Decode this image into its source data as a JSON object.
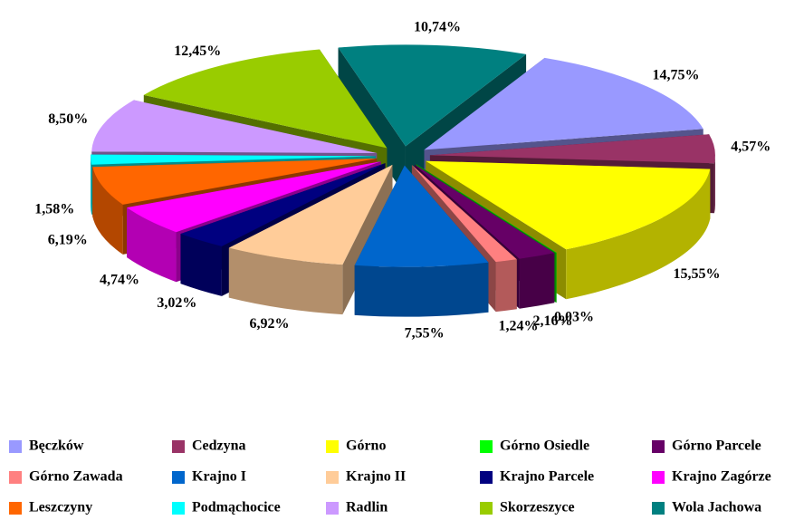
{
  "chart_data": {
    "type": "pie",
    "categories": [
      "Bęczków",
      "Cedzyna",
      "Górno",
      "Górno Osiedle",
      "Górno Parcele",
      "Górno Zawada",
      "Krajno I",
      "Krajno II",
      "Krajno Parcele",
      "Krajno Zagórze",
      "Leszczyny",
      "Podmąchocice",
      "Radlin",
      "Skorzeszyce",
      "Wola Jachowa"
    ],
    "values": [
      14.75,
      4.57,
      15.55,
      0.03,
      2.16,
      1.24,
      7.55,
      6.92,
      3.02,
      4.74,
      6.19,
      1.58,
      8.5,
      12.45,
      10.74
    ],
    "value_labels": [
      "14,75%",
      "4,57%",
      "15,55%",
      "0,03%",
      "2,16%",
      "1,24%",
      "7,55%",
      "6,92%",
      "3,02%",
      "4,74%",
      "6,19%",
      "1,58%",
      "8,50%",
      "12,45%",
      "10,74%"
    ],
    "colors": [
      "#9999ff",
      "#993366",
      "#ffff00",
      "#00ff00",
      "#660066",
      "#ff8080",
      "#0066cc",
      "#ffcc99",
      "#000080",
      "#ff00ff",
      "#ff6600",
      "#00ffff",
      "#cc99ff",
      "#99cc00",
      "#008080"
    ],
    "legend": "bottom"
  }
}
